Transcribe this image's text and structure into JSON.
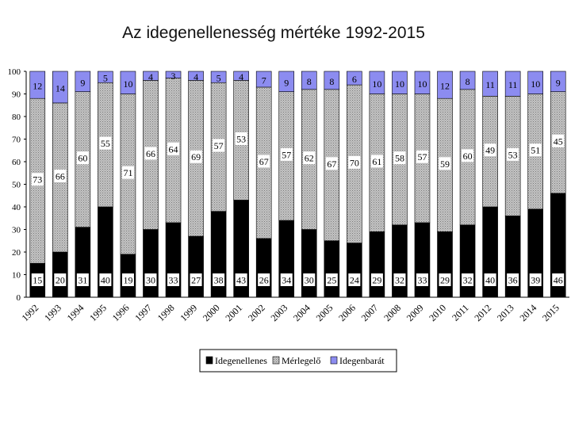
{
  "chart_data": {
    "type": "bar",
    "stacked": true,
    "title": "Az idegenellenesség mértéke 1992-2015",
    "xlabel": "",
    "ylabel": "",
    "ylim": [
      0,
      100
    ],
    "yticks": [
      0,
      10,
      20,
      30,
      40,
      50,
      60,
      70,
      80,
      90,
      100
    ],
    "grid": false,
    "legend_position": "bottom",
    "categories": [
      "1992",
      "1993",
      "1994",
      "1995",
      "1996",
      "1997",
      "1998",
      "1999",
      "2000",
      "2001",
      "2002",
      "2003",
      "2004",
      "2005",
      "2006",
      "2007",
      "2008",
      "2009",
      "2010",
      "2011",
      "2012",
      "2013",
      "2014",
      "2015"
    ],
    "series": [
      {
        "name": "Idegenellenes",
        "color": "#000000",
        "values": [
          15,
          20,
          31,
          40,
          19,
          30,
          33,
          27,
          38,
          43,
          26,
          34,
          30,
          25,
          24,
          29,
          32,
          33,
          29,
          32,
          40,
          36,
          39,
          46
        ]
      },
      {
        "name": "Mérlegelő",
        "color": "#b8b8b8",
        "values": [
          73,
          66,
          60,
          55,
          71,
          66,
          64,
          69,
          57,
          53,
          67,
          57,
          62,
          67,
          70,
          61,
          58,
          57,
          59,
          60,
          49,
          53,
          51,
          45
        ]
      },
      {
        "name": "Idegenbarát",
        "color": "#8c8cf0",
        "values": [
          12,
          14,
          9,
          5,
          10,
          4,
          3,
          4,
          5,
          4,
          7,
          9,
          8,
          8,
          6,
          10,
          10,
          10,
          12,
          8,
          11,
          11,
          10,
          9
        ]
      }
    ]
  }
}
